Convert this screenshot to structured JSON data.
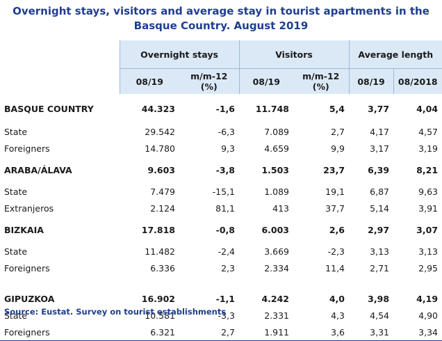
{
  "title": "Overnight stays, visitors and average stay in tourist apartments in the Basque Country. August 2019",
  "groups": [
    "Overnight stays",
    "Visitors",
    "Average length"
  ],
  "subheaders": [
    "08/19",
    "m/m-12 (%)",
    "08/19",
    "m/m-12 (%)",
    "08/19",
    "08/2018"
  ],
  "rows": [
    {
      "label": "BASQUE COUNTRY",
      "v": [
        "44.323",
        "-1,6",
        "11.748",
        "5,4",
        "3,77",
        "4,04"
      ]
    },
    {
      "label": "State",
      "v": [
        "29.542",
        "-6,3",
        "7.089",
        "2,7",
        "4,17",
        "4,57"
      ]
    },
    {
      "label": "Foreigners",
      "v": [
        "14.780",
        "9,3",
        "4.659",
        "9,9",
        "3,17",
        "3,19"
      ]
    },
    {
      "label": "ARABA/ÁLAVA",
      "v": [
        "9.603",
        "-3,8",
        "1.503",
        "23,7",
        "6,39",
        "8,21"
      ]
    },
    {
      "label": "State",
      "v": [
        "7.479",
        "-15,1",
        "1.089",
        "19,1",
        "6,87",
        "9,63"
      ]
    },
    {
      "label": "Extranjeros",
      "v": [
        "2.124",
        "81,1",
        "413",
        "37,7",
        "5,14",
        "3,91"
      ]
    },
    {
      "label": "BIZKAIA",
      "v": [
        "17.818",
        "-0,8",
        "6.003",
        "2,6",
        "2,97",
        "3,07"
      ]
    },
    {
      "label": "State",
      "v": [
        "11.482",
        "-2,4",
        "3.669",
        "-2,3",
        "3,13",
        "3,13"
      ]
    },
    {
      "label": "Foreigners",
      "v": [
        "6.336",
        "2,3",
        "2.334",
        "11,4",
        "2,71",
        "2,95"
      ]
    },
    {
      "label": "GIPUZKOA",
      "v": [
        "16.902",
        "-1,1",
        "4.242",
        "4,0",
        "3,98",
        "4,19"
      ]
    },
    {
      "label": "State",
      "v": [
        "10.581",
        "-3,3",
        "2.331",
        "4,3",
        "4,54",
        "4,90"
      ]
    },
    {
      "label": "Foreigners",
      "v": [
        "6.321",
        "2,7",
        "1.911",
        "3,6",
        "3,31",
        "3,34"
      ]
    }
  ],
  "source": "Source: Eustat. Survey on tourist establishments"
}
